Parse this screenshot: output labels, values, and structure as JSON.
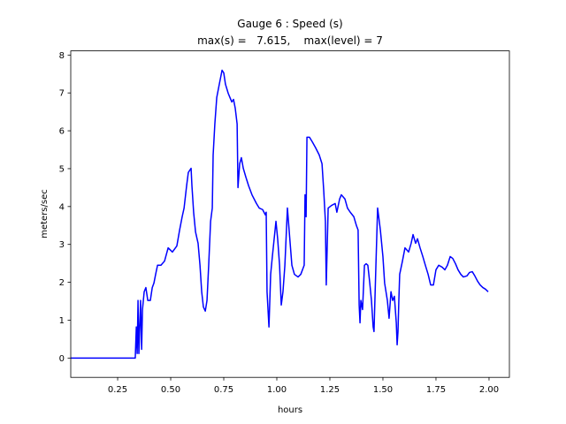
{
  "chart_data": {
    "type": "line",
    "title": "Gauge 6 : Speed (s)",
    "subtitle": "max(s) =   7.615,    max(level) = 7",
    "x_label": "hours",
    "y_label": "meters/sec",
    "color": "#0000ff",
    "xlim": [
      0.029,
      2.096
    ],
    "ylim": [
      -0.51,
      8.11
    ],
    "xticks": [
      {
        "value": 0.25,
        "label": "0.25"
      },
      {
        "value": 0.5,
        "label": "0.50"
      },
      0.75,
      {
        "value": 1,
        "label": "1.00"
      },
      1.25,
      {
        "value": 1.5,
        "label": "1.50"
      },
      1.75,
      {
        "value": 2,
        "label": "2.00"
      }
    ],
    "yticks": [
      0,
      1,
      2,
      3,
      4,
      5,
      6,
      7,
      8
    ],
    "x": [
      0.029,
      0.333,
      0.338,
      0.342,
      0.346,
      0.35,
      0.358,
      0.363,
      0.367,
      0.375,
      0.383,
      0.392,
      0.404,
      0.413,
      0.421,
      0.429,
      0.438,
      0.454,
      0.471,
      0.488,
      0.508,
      0.529,
      0.542,
      0.554,
      0.563,
      0.575,
      0.583,
      0.596,
      0.6,
      0.608,
      0.617,
      0.629,
      0.638,
      0.646,
      0.654,
      0.663,
      0.671,
      0.679,
      0.688,
      0.696,
      0.7,
      0.708,
      0.717,
      0.729,
      0.742,
      0.75,
      0.758,
      0.771,
      0.779,
      0.788,
      0.796,
      0.804,
      0.813,
      0.817,
      0.825,
      0.833,
      0.842,
      0.854,
      0.867,
      0.883,
      0.904,
      0.917,
      0.933,
      0.946,
      0.95,
      0.954,
      0.963,
      0.971,
      0.979,
      0.996,
      1.004,
      1.013,
      1.021,
      1.029,
      1.038,
      1.05,
      1.058,
      1.071,
      1.083,
      1.1,
      1.113,
      1.129,
      1.133,
      1.138,
      1.142,
      1.154,
      1.167,
      1.183,
      1.2,
      1.213,
      1.221,
      1.229,
      1.233,
      1.242,
      1.258,
      1.275,
      1.283,
      1.296,
      1.304,
      1.321,
      1.333,
      1.346,
      1.363,
      1.375,
      1.383,
      1.388,
      1.392,
      1.396,
      1.404,
      1.413,
      1.421,
      1.429,
      1.438,
      1.446,
      1.454,
      1.458,
      1.467,
      1.475,
      1.488,
      1.5,
      1.508,
      1.521,
      1.529,
      1.538,
      1.546,
      1.554,
      1.563,
      1.567,
      1.571,
      1.575,
      1.579,
      1.592,
      1.604,
      1.621,
      1.633,
      1.642,
      1.654,
      1.663,
      1.675,
      1.688,
      1.7,
      1.713,
      1.725,
      1.738,
      1.75,
      1.763,
      1.779,
      1.792,
      1.804,
      1.817,
      1.829,
      1.842,
      1.854,
      1.867,
      1.879,
      1.896,
      1.908,
      1.921,
      1.933,
      1.946,
      1.958,
      1.971,
      1.983,
      1.996
    ],
    "values": [
      0,
      0,
      0.82,
      0.12,
      1.52,
      0.12,
      1.52,
      0.23,
      1.28,
      1.75,
      1.86,
      1.52,
      1.52,
      1.86,
      1.98,
      2.21,
      2.45,
      2.45,
      2.56,
      2.91,
      2.8,
      2.96,
      3.38,
      3.73,
      3.96,
      4.55,
      4.9,
      5.01,
      4.55,
      3.85,
      3.33,
      3.03,
      2.45,
      1.75,
      1.35,
      1.24,
      1.52,
      2.45,
      3.61,
      3.96,
      5.36,
      6.18,
      6.88,
      7.23,
      7.6,
      7.53,
      7.23,
      6.99,
      6.88,
      6.76,
      6.83,
      6.6,
      6.18,
      4.5,
      5.13,
      5.29,
      5.01,
      4.78,
      4.55,
      4.31,
      4.08,
      3.96,
      3.92,
      3.78,
      3.85,
      1.75,
      0.82,
      2.21,
      2.68,
      3.61,
      3.15,
      2.45,
      1.4,
      1.75,
      2.45,
      3.96,
      3.38,
      2.45,
      2.21,
      2.14,
      2.21,
      2.45,
      4.31,
      3.73,
      5.83,
      5.83,
      5.71,
      5.55,
      5.36,
      5.13,
      4.43,
      3.61,
      1.93,
      3.96,
      4.03,
      4.08,
      3.85,
      4.2,
      4.31,
      4.2,
      3.96,
      3.85,
      3.73,
      3.5,
      3.38,
      1.4,
      0.93,
      1.52,
      1.28,
      2.45,
      2.49,
      2.45,
      1.98,
      1.52,
      0.82,
      0.7,
      2.45,
      3.96,
      3.38,
      2.68,
      1.98,
      1.52,
      1.05,
      1.75,
      1.52,
      1.63,
      0.93,
      0.35,
      0.7,
      1.52,
      2.21,
      2.56,
      2.91,
      2.8,
      3.03,
      3.26,
      3.03,
      3.15,
      2.91,
      2.68,
      2.45,
      2.21,
      1.93,
      1.93,
      2.33,
      2.45,
      2.4,
      2.33,
      2.45,
      2.68,
      2.63,
      2.49,
      2.33,
      2.21,
      2.14,
      2.17,
      2.26,
      2.28,
      2.17,
      2.03,
      1.93,
      1.86,
      1.82,
      1.75
    ]
  }
}
